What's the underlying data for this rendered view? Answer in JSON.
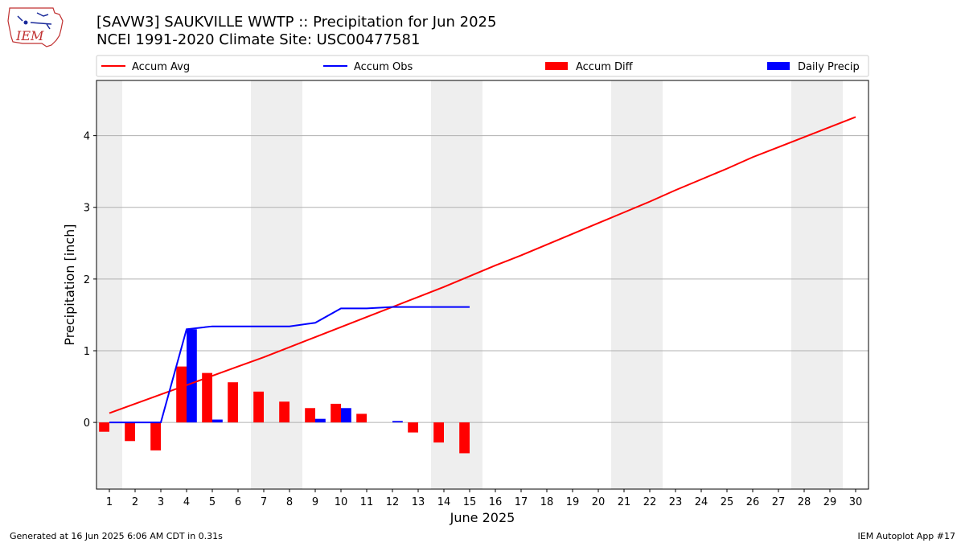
{
  "header": {
    "title_line1": "[SAVW3] SAUKVILLE WWTP :: Precipitation for Jun 2025",
    "title_line2": "NCEI 1991-2020 Climate Site: USC00477581",
    "logo_text": "IEM"
  },
  "footer": {
    "left": "Generated at 16 Jun 2025 6:06 AM CDT in 0.31s",
    "right": "IEM Autoplot App #17"
  },
  "colors": {
    "accum_avg": "#ff0000",
    "accum_obs": "#0000ff",
    "accum_diff": "#ff0000",
    "daily_precip": "#0000ff",
    "weekend_shade": "#eeeeee",
    "grid": "#b0b0b0"
  },
  "chart_data": {
    "type": "bar",
    "xlabel": "June 2025",
    "ylabel": "Precipitation [inch]",
    "xlim": [
      0.5,
      30.5
    ],
    "ylim": [
      -0.93,
      4.77
    ],
    "x_ticks": [
      1,
      2,
      3,
      4,
      5,
      6,
      7,
      8,
      9,
      10,
      11,
      12,
      13,
      14,
      15,
      16,
      17,
      18,
      19,
      20,
      21,
      22,
      23,
      24,
      25,
      26,
      27,
      28,
      29,
      30
    ],
    "y_ticks": [
      0,
      1,
      2,
      3,
      4
    ],
    "grid": "y",
    "legend_position": "top, outside plot",
    "weekend_shading_days": [
      [
        1,
        1
      ],
      [
        7,
        8
      ],
      [
        14,
        15
      ],
      [
        21,
        22
      ],
      [
        28,
        29
      ]
    ],
    "legend": [
      {
        "label": "Accum Avg",
        "kind": "line",
        "color": "#ff0000"
      },
      {
        "label": "Accum Obs",
        "kind": "line",
        "color": "#0000ff"
      },
      {
        "label": "Accum Diff",
        "kind": "bar",
        "color": "#ff0000"
      },
      {
        "label": "Daily Precip",
        "kind": "bar",
        "color": "#0000ff"
      }
    ],
    "series": [
      {
        "name": "Accum Avg",
        "x": [
          1,
          2,
          3,
          4,
          5,
          6,
          7,
          8,
          9,
          10,
          11,
          12,
          13,
          14,
          15,
          16,
          17,
          18,
          19,
          20,
          21,
          22,
          23,
          24,
          25,
          26,
          27,
          28,
          29,
          30
        ],
        "values": [
          0.13,
          0.26,
          0.39,
          0.52,
          0.65,
          0.78,
          0.91,
          1.05,
          1.19,
          1.33,
          1.47,
          1.61,
          1.75,
          1.89,
          2.04,
          2.19,
          2.33,
          2.48,
          2.63,
          2.78,
          2.93,
          3.08,
          3.24,
          3.39,
          3.54,
          3.7,
          3.84,
          3.98,
          4.12,
          4.26
        ]
      },
      {
        "name": "Accum Obs",
        "x": [
          1,
          2,
          3,
          4,
          5,
          6,
          7,
          8,
          9,
          10,
          11,
          12,
          13,
          14,
          15
        ],
        "values": [
          0.0,
          0.0,
          0.0,
          1.3,
          1.34,
          1.34,
          1.34,
          1.34,
          1.39,
          1.59,
          1.59,
          1.61,
          1.61,
          1.61,
          1.61
        ]
      },
      {
        "name": "Accum Diff",
        "x": [
          1,
          2,
          3,
          4,
          5,
          6,
          7,
          8,
          9,
          10,
          11,
          12,
          13,
          14,
          15
        ],
        "values": [
          -0.13,
          -0.26,
          -0.39,
          0.78,
          0.69,
          0.56,
          0.43,
          0.29,
          0.2,
          0.26,
          0.12,
          0.0,
          -0.14,
          -0.28,
          -0.43
        ]
      },
      {
        "name": "Daily Precip",
        "x": [
          1,
          2,
          3,
          4,
          5,
          6,
          7,
          8,
          9,
          10,
          11,
          12,
          13,
          14,
          15
        ],
        "values": [
          0,
          0,
          0,
          1.3,
          0.04,
          0,
          0,
          0,
          0.05,
          0.2,
          0,
          0.02,
          0,
          0,
          0
        ]
      }
    ]
  }
}
